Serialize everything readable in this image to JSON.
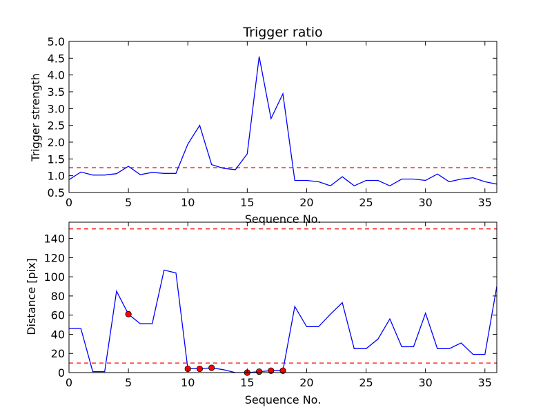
{
  "chart_data": [
    {
      "type": "line",
      "title": "Trigger ratio",
      "xlabel": "Sequence No.",
      "ylabel": "Trigger strength",
      "xlim": [
        0,
        36
      ],
      "ylim": [
        0.5,
        5.0
      ],
      "xticks": [
        0,
        5,
        10,
        15,
        20,
        25,
        30,
        35
      ],
      "yticks": [
        0.5,
        1.0,
        1.5,
        2.0,
        2.5,
        3.0,
        3.5,
        4.0,
        4.5,
        5.0
      ],
      "ytick_labels": [
        "0.5",
        "1.0",
        "1.5",
        "2.0",
        "2.5",
        "3.0",
        "3.5",
        "4.0",
        "4.5",
        "5.0"
      ],
      "grid": false,
      "series": [
        {
          "color": "#0000ff",
          "x": [
            0,
            1,
            2,
            3,
            4,
            5,
            6,
            7,
            8,
            9,
            10,
            11,
            12,
            13,
            14,
            15,
            16,
            17,
            18,
            19,
            20,
            21,
            22,
            23,
            24,
            25,
            26,
            27,
            28,
            29,
            30,
            31,
            32,
            33,
            34,
            35,
            36
          ],
          "y": [
            0.88,
            1.11,
            1.02,
            1.02,
            1.06,
            1.28,
            1.03,
            1.1,
            1.07,
            1.07,
            1.94,
            2.5,
            1.33,
            1.22,
            1.18,
            1.65,
            4.55,
            2.7,
            3.44,
            0.86,
            0.86,
            0.82,
            0.7,
            0.97,
            0.7,
            0.86,
            0.86,
            0.7,
            0.9,
            0.9,
            0.86,
            1.05,
            0.82,
            0.9,
            0.94,
            0.82,
            0.75
          ]
        }
      ],
      "hlines": [
        {
          "y": 1.24,
          "color": "#ff0000",
          "style": "dashed"
        }
      ]
    },
    {
      "type": "line",
      "title": "",
      "xlabel": "Sequence No.",
      "ylabel": "Distance [pix]",
      "xlim": [
        0,
        36
      ],
      "ylim": [
        0,
        157
      ],
      "xticks": [
        0,
        5,
        10,
        15,
        20,
        25,
        30,
        35
      ],
      "yticks": [
        0,
        20,
        40,
        60,
        80,
        100,
        120,
        140
      ],
      "ytick_labels": [
        "0",
        "20",
        "40",
        "60",
        "80",
        "100",
        "120",
        "140"
      ],
      "grid": false,
      "series": [
        {
          "color": "#0000ff",
          "x": [
            0,
            1,
            2,
            3,
            4,
            5,
            6,
            7,
            8,
            9,
            10,
            11,
            12,
            13,
            14,
            15,
            16,
            17,
            18,
            19,
            20,
            21,
            22,
            23,
            24,
            25,
            26,
            27,
            28,
            29,
            30,
            31,
            32,
            33,
            34,
            35,
            36
          ],
          "y": [
            46,
            46,
            1,
            1,
            85,
            61,
            51,
            51,
            107,
            104,
            4,
            4,
            5,
            3,
            0,
            0,
            1,
            2,
            2,
            69,
            48,
            48,
            61,
            73,
            25,
            25,
            35,
            56,
            27,
            27,
            62,
            25,
            25,
            31,
            19,
            19,
            90
          ]
        }
      ],
      "markers": {
        "color": "#ff0000",
        "x": [
          5,
          10,
          11,
          12,
          15,
          16,
          17,
          18
        ],
        "y": [
          61,
          4,
          4,
          5,
          0,
          1,
          2,
          2
        ]
      },
      "hlines": [
        {
          "y": 150,
          "color": "#ff0000",
          "style": "dashed"
        },
        {
          "y": 10,
          "color": "#ff0000",
          "style": "dashed"
        }
      ]
    }
  ]
}
